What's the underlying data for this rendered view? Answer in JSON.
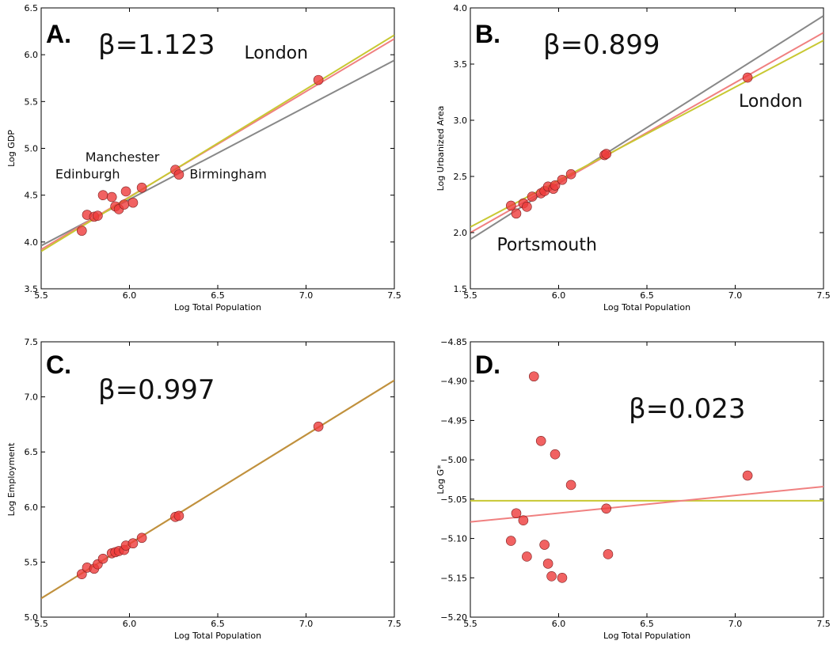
{
  "colors": {
    "fit_gray": "#888888",
    "fit_red": "#f08080",
    "fit_yellow": "#c8c832",
    "point": "#ee3b3b",
    "fit_orange": "#c09040"
  },
  "chart_data": [
    {
      "panel": "A.",
      "type": "scatter",
      "beta": "β=1.123",
      "xlabel": "Log Total Population",
      "ylabel": "Log GDP",
      "xlim": [
        5.5,
        7.5
      ],
      "ylim": [
        3.5,
        6.5
      ],
      "xticks": [
        "5.5",
        "6.0",
        "6.5",
        "7.0",
        "7.5"
      ],
      "yticks": [
        "3.5",
        "4.0",
        "4.5",
        "5.0",
        "5.5",
        "6.0",
        "6.5"
      ],
      "points": [
        [
          5.73,
          4.12
        ],
        [
          5.76,
          4.29
        ],
        [
          5.8,
          4.27
        ],
        [
          5.82,
          4.28
        ],
        [
          5.85,
          4.5
        ],
        [
          5.9,
          4.48
        ],
        [
          5.92,
          4.38
        ],
        [
          5.94,
          4.35
        ],
        [
          5.97,
          4.4
        ],
        [
          5.98,
          4.54
        ],
        [
          6.02,
          4.42
        ],
        [
          6.07,
          4.58
        ],
        [
          6.26,
          4.77
        ],
        [
          6.28,
          4.72
        ],
        [
          7.07,
          5.73
        ]
      ],
      "fit_lines": [
        {
          "color": "#888888",
          "x": [
            5.5,
            7.5
          ],
          "y": [
            3.96,
            5.94
          ]
        },
        {
          "color": "#f08080",
          "x": [
            5.5,
            7.5
          ],
          "y": [
            3.92,
            6.17
          ]
        },
        {
          "color": "#c8c832",
          "x": [
            5.5,
            7.5
          ],
          "y": [
            3.9,
            6.21
          ]
        }
      ],
      "annotations": [
        {
          "text": "London",
          "x": 6.65,
          "y": 5.96,
          "size": 22
        },
        {
          "text": "Manchester",
          "x": 5.75,
          "y": 4.86,
          "size": 16
        },
        {
          "text": "Edinburgh",
          "x": 5.58,
          "y": 4.68,
          "size": 16
        },
        {
          "text": "Birmingham",
          "x": 6.34,
          "y": 4.68,
          "size": 16
        }
      ]
    },
    {
      "panel": "B.",
      "type": "scatter",
      "beta": "β=0.899",
      "xlabel": "Log Total Population",
      "ylabel": "Log Urbanized Area",
      "xlim": [
        5.5,
        7.5
      ],
      "ylim": [
        1.5,
        4.0
      ],
      "xticks": [
        "5.5",
        "6.0",
        "6.5",
        "7.0",
        "7.5"
      ],
      "yticks": [
        "1.5",
        "2.0",
        "2.5",
        "3.0",
        "3.5",
        "4.0"
      ],
      "points": [
        [
          5.73,
          2.24
        ],
        [
          5.76,
          2.17
        ],
        [
          5.8,
          2.26
        ],
        [
          5.82,
          2.23
        ],
        [
          5.85,
          2.32
        ],
        [
          5.9,
          2.35
        ],
        [
          5.92,
          2.37
        ],
        [
          5.94,
          2.41
        ],
        [
          5.97,
          2.39
        ],
        [
          5.98,
          2.42
        ],
        [
          6.02,
          2.47
        ],
        [
          6.07,
          2.52
        ],
        [
          6.26,
          2.69
        ],
        [
          6.27,
          2.7
        ],
        [
          7.07,
          3.38
        ]
      ],
      "fit_lines": [
        {
          "color": "#888888",
          "x": [
            5.5,
            7.5
          ],
          "y": [
            1.94,
            3.93
          ]
        },
        {
          "color": "#f08080",
          "x": [
            5.5,
            7.5
          ],
          "y": [
            2.0,
            3.78
          ]
        },
        {
          "color": "#c8c832",
          "x": [
            5.5,
            7.5
          ],
          "y": [
            2.05,
            3.71
          ]
        }
      ],
      "annotations": [
        {
          "text": "London",
          "x": 7.02,
          "y": 3.12,
          "size": 22
        },
        {
          "text": "Portsmouth",
          "x": 5.65,
          "y": 1.84,
          "size": 22
        }
      ]
    },
    {
      "panel": "C.",
      "type": "scatter",
      "beta": "β=0.997",
      "xlabel": "Log Total Population",
      "ylabel": "Log Employment",
      "xlim": [
        5.5,
        7.5
      ],
      "ylim": [
        5.0,
        7.5
      ],
      "xticks": [
        "5.5",
        "6.0",
        "6.5",
        "7.0",
        "7.5"
      ],
      "yticks": [
        "5.0",
        "5.5",
        "6.0",
        "6.5",
        "7.0",
        "7.5"
      ],
      "points": [
        [
          5.73,
          5.39
        ],
        [
          5.76,
          5.45
        ],
        [
          5.8,
          5.44
        ],
        [
          5.82,
          5.48
        ],
        [
          5.85,
          5.53
        ],
        [
          5.9,
          5.58
        ],
        [
          5.92,
          5.59
        ],
        [
          5.94,
          5.6
        ],
        [
          5.97,
          5.61
        ],
        [
          5.98,
          5.65
        ],
        [
          6.02,
          5.67
        ],
        [
          6.07,
          5.72
        ],
        [
          6.26,
          5.91
        ],
        [
          6.28,
          5.92
        ],
        [
          7.07,
          6.73
        ]
      ],
      "fit_lines": [
        {
          "color": "#f08080",
          "x": [
            5.5,
            7.5
          ],
          "y": [
            5.17,
            7.15
          ]
        },
        {
          "color": "#c8c832",
          "x": [
            5.5,
            7.5
          ],
          "y": [
            5.17,
            7.15
          ]
        },
        {
          "color": "#c09040",
          "x": [
            5.5,
            7.5
          ],
          "y": [
            5.17,
            7.15
          ]
        }
      ],
      "annotations": []
    },
    {
      "panel": "D.",
      "type": "scatter",
      "beta": "β=0.023",
      "xlabel": "Log Total Population",
      "ylabel": "Log G*",
      "xlim": [
        5.5,
        7.5
      ],
      "ylim": [
        -5.2,
        -4.85
      ],
      "xticks": [
        "5.5",
        "6.0",
        "6.5",
        "7.0",
        "7.5"
      ],
      "yticks": [
        "−5.20",
        "−5.15",
        "−5.10",
        "−5.05",
        "−5.00",
        "−4.95",
        "−4.90",
        "−4.85"
      ],
      "points": [
        [
          5.73,
          -5.103
        ],
        [
          5.76,
          -5.068
        ],
        [
          5.8,
          -5.077
        ],
        [
          5.82,
          -5.123
        ],
        [
          5.86,
          -4.894
        ],
        [
          5.9,
          -4.976
        ],
        [
          5.92,
          -5.108
        ],
        [
          5.94,
          -5.132
        ],
        [
          5.96,
          -5.148
        ],
        [
          5.98,
          -4.993
        ],
        [
          6.02,
          -5.15
        ],
        [
          6.07,
          -5.032
        ],
        [
          6.27,
          -5.062
        ],
        [
          6.28,
          -5.12
        ],
        [
          7.07,
          -5.02
        ]
      ],
      "fit_lines": [
        {
          "color": "#c8c832",
          "x": [
            5.5,
            7.5
          ],
          "y": [
            -5.052,
            -5.052
          ]
        },
        {
          "color": "#f08080",
          "x": [
            5.5,
            7.5
          ],
          "y": [
            -5.079,
            -5.034
          ]
        }
      ],
      "annotations": []
    }
  ]
}
